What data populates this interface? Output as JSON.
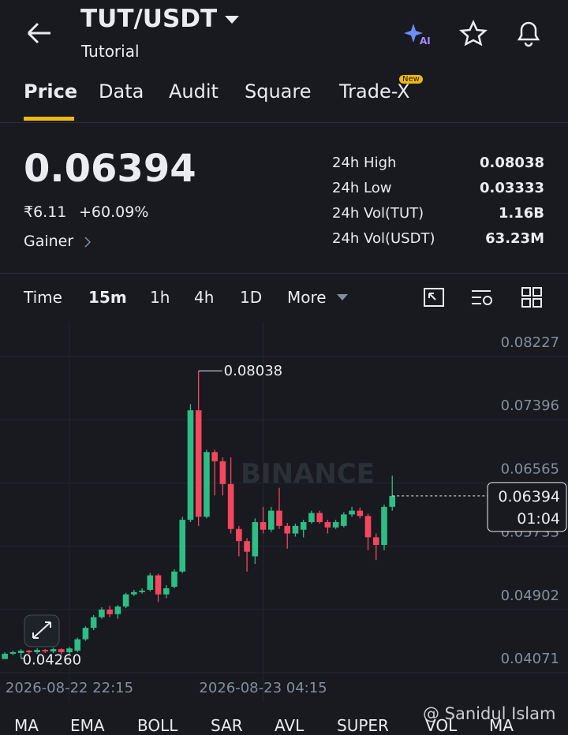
{
  "header": {
    "title": "TUT/USDT",
    "subtitle": "Tutorial",
    "ai_badge": "AI"
  },
  "tabs": [
    {
      "label": "Price"
    },
    {
      "label": "Data"
    },
    {
      "label": "Audit"
    },
    {
      "label": "Square"
    },
    {
      "label": "Trade-X",
      "badge": "New"
    }
  ],
  "ticker": {
    "price": "0.06394",
    "fiat": "₹6.11",
    "change": "+60.09%",
    "tag": "Gainer",
    "stats": [
      [
        "24h High",
        "0.08038"
      ],
      [
        "24h Low",
        "0.03333"
      ],
      [
        "24h Vol(TUT)",
        "1.16B"
      ],
      [
        "24h Vol(USDT)",
        "63.23M"
      ]
    ]
  },
  "intervals": [
    "Time",
    "15m",
    "1h",
    "4h",
    "1D",
    "More"
  ],
  "watermark": "BINANCE",
  "chart_data": {
    "type": "candlestick",
    "open": [
      0.0425,
      0.0432,
      0.0433,
      0.0436,
      0.0434,
      0.0437,
      0.0435,
      0.0438,
      0.0434,
      0.0436,
      0.0451,
      0.0466,
      0.048,
      0.049,
      0.0484,
      0.0494,
      0.051,
      0.0513,
      0.0516,
      0.0535,
      0.051,
      0.052,
      0.054,
      0.0608,
      0.0752,
      0.0612,
      0.0697,
      0.0685,
      0.0655,
      0.0596,
      0.058,
      0.056,
      0.0605,
      0.0595,
      0.062,
      0.06,
      0.059,
      0.0595,
      0.0605,
      0.0617,
      0.0605,
      0.0598,
      0.06,
      0.0615,
      0.062,
      0.0613,
      0.0585,
      0.0575,
      0.0625
    ],
    "high": [
      0.0434,
      0.0436,
      0.0438,
      0.0437,
      0.0439,
      0.0438,
      0.044,
      0.0439,
      0.0441,
      0.0453,
      0.0468,
      0.0483,
      0.0493,
      0.0495,
      0.0496,
      0.0512,
      0.0516,
      0.0518,
      0.0538,
      0.0537,
      0.0522,
      0.0543,
      0.0612,
      0.076,
      0.08038,
      0.07,
      0.07,
      0.069,
      0.069,
      0.06,
      0.0584,
      0.061,
      0.0625,
      0.0625,
      0.065,
      0.0604,
      0.0603,
      0.0608,
      0.062,
      0.062,
      0.0608,
      0.0608,
      0.0618,
      0.0625,
      0.0624,
      0.0616,
      0.059,
      0.0628,
      0.0666
    ],
    "low": [
      0.0427,
      0.043,
      0.0426,
      0.0432,
      0.0432,
      0.0433,
      0.0433,
      0.0431,
      0.0432,
      0.0434,
      0.0449,
      0.0463,
      0.0478,
      0.048,
      0.0478,
      0.0492,
      0.0508,
      0.0511,
      0.0514,
      0.05,
      0.0505,
      0.0518,
      0.0538,
      0.0605,
      0.06,
      0.061,
      0.064,
      0.064,
      0.059,
      0.056,
      0.054,
      0.055,
      0.059,
      0.0592,
      0.0596,
      0.057,
      0.0586,
      0.0585,
      0.0603,
      0.0603,
      0.059,
      0.0596,
      0.0598,
      0.0612,
      0.061,
      0.0568,
      0.0555,
      0.0568,
      0.062
    ],
    "close": [
      0.0432,
      0.0434,
      0.0436,
      0.0434,
      0.0437,
      0.0435,
      0.0438,
      0.0434,
      0.0439,
      0.0451,
      0.0466,
      0.048,
      0.049,
      0.0484,
      0.0494,
      0.051,
      0.0513,
      0.0515,
      0.0535,
      0.051,
      0.0518,
      0.054,
      0.0608,
      0.0752,
      0.0612,
      0.0697,
      0.0685,
      0.0655,
      0.0596,
      0.058,
      0.0566,
      0.0605,
      0.0595,
      0.062,
      0.06,
      0.059,
      0.06,
      0.0605,
      0.0617,
      0.0605,
      0.0598,
      0.0605,
      0.0615,
      0.062,
      0.0613,
      0.0585,
      0.0575,
      0.0625,
      0.06394
    ],
    "up_color": "#2ebd85",
    "down_color": "#f6465d",
    "ylim": [
      0.0405,
      0.08683
    ],
    "yticks": [
      0.08227,
      0.07396,
      0.06565,
      0.05733,
      0.04902,
      0.04071
    ],
    "xlim": [
      -0.6,
      60
    ],
    "xticks": [
      {
        "value": 8,
        "label": "2026-08-22 22:15"
      },
      {
        "value": 32,
        "label": "2026-08-23 04:15"
      }
    ],
    "grid": true,
    "max_marker": 0.08038,
    "min_marker": {
      "value": 0.0426,
      "label": "0.04260"
    },
    "last_price": 0.06394,
    "countdown": "01:04"
  },
  "indicators": [
    "MA",
    "EMA",
    "BOLL",
    "SAR",
    "AVL",
    "SUPER",
    "VOL",
    "MA"
  ],
  "credit": "@ Sanidul Islam"
}
